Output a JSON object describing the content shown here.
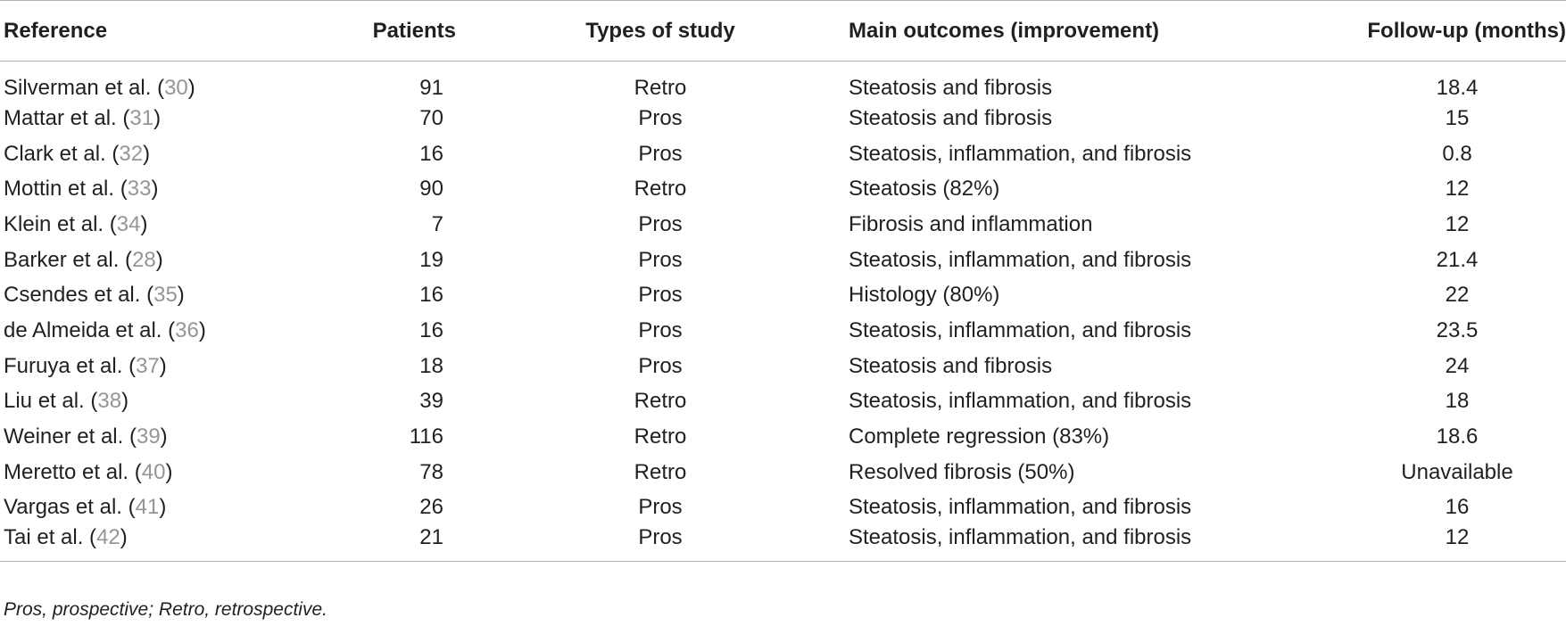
{
  "headers": {
    "reference": "Reference",
    "patients": "Patients",
    "type": "Types of study",
    "outcome": "Main outcomes (improvement)",
    "followup": "Follow-up (months)"
  },
  "rows": [
    {
      "author": "Silverman et al.",
      "cite": "30",
      "patients": "91",
      "type": "Retro",
      "outcome": "Steatosis and fibrosis",
      "followup": "18.4"
    },
    {
      "author": "Mattar et al.",
      "cite": "31",
      "patients": "70",
      "type": "Pros",
      "outcome": "Steatosis and fibrosis",
      "followup": "15"
    },
    {
      "author": "Clark et al.",
      "cite": "32",
      "patients": "16",
      "type": "Pros",
      "outcome": "Steatosis, inflammation, and fibrosis",
      "followup": "0.8"
    },
    {
      "author": "Mottin et al.",
      "cite": "33",
      "patients": "90",
      "type": "Retro",
      "outcome": "Steatosis (82%)",
      "followup": "12"
    },
    {
      "author": "Klein et al.",
      "cite": "34",
      "patients": "7",
      "type": "Pros",
      "outcome": "Fibrosis and inflammation",
      "followup": "12"
    },
    {
      "author": "Barker et al.",
      "cite": "28",
      "patients": "19",
      "type": "Pros",
      "outcome": "Steatosis, inflammation, and fibrosis",
      "followup": "21.4"
    },
    {
      "author": "Csendes et al.",
      "cite": "35",
      "patients": "16",
      "type": "Pros",
      "outcome": "Histology (80%)",
      "followup": "22"
    },
    {
      "author": "de Almeida et al.",
      "cite": "36",
      "patients": "16",
      "type": "Pros",
      "outcome": "Steatosis, inflammation, and fibrosis",
      "followup": "23.5"
    },
    {
      "author": "Furuya et al.",
      "cite": "37",
      "patients": "18",
      "type": "Pros",
      "outcome": "Steatosis and fibrosis",
      "followup": "24"
    },
    {
      "author": "Liu et al.",
      "cite": "38",
      "patients": "39",
      "type": "Retro",
      "outcome": "Steatosis, inflammation, and fibrosis",
      "followup": "18"
    },
    {
      "author": "Weiner et al.",
      "cite": "39",
      "patients": "116",
      "type": "Retro",
      "outcome": "Complete regression (83%)",
      "followup": "18.6"
    },
    {
      "author": "Meretto et al.",
      "cite": "40",
      "patients": "78",
      "type": "Retro",
      "outcome": "Resolved fibrosis (50%)",
      "followup": "Unavailable"
    },
    {
      "author": "Vargas et al.",
      "cite": "41",
      "patients": "26",
      "type": "Pros",
      "outcome": "Steatosis, inflammation, and fibrosis",
      "followup": "16"
    },
    {
      "author": "Tai et al.",
      "cite": "42",
      "patients": "21",
      "type": "Pros",
      "outcome": "Steatosis, inflammation, and fibrosis",
      "followup": "12"
    }
  ],
  "footnote": "Pros, prospective; Retro, retrospective.",
  "colors": {
    "text": "#231f20",
    "citation": "#939598",
    "rule": "#b3b3b3"
  }
}
